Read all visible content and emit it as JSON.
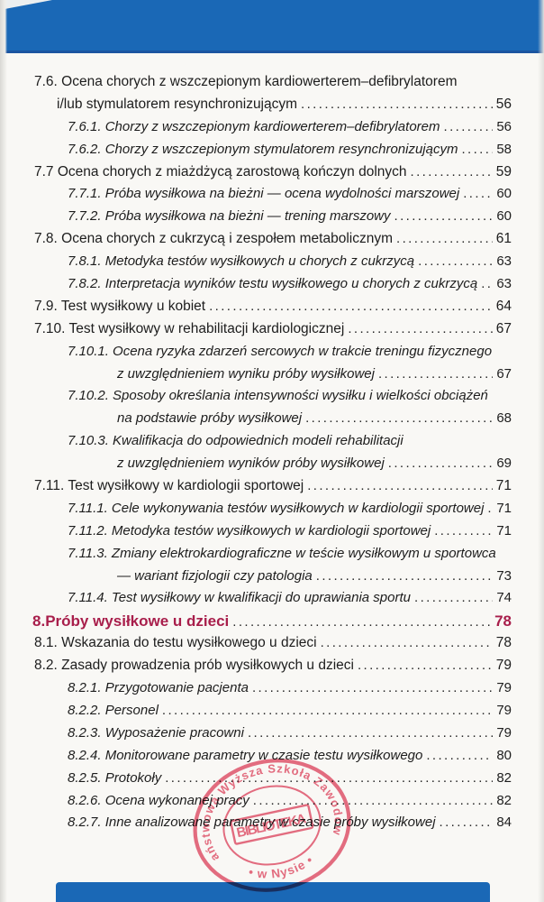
{
  "colors": {
    "blue_band": "#1a68b6",
    "blue_band_edge": "#1c55a0",
    "page_bg": "#f9f8f5",
    "text": "#1d1d1d",
    "heading_red": "#a81e4b",
    "stamp_pink": "#e4556e"
  },
  "toc": [
    {
      "lvl": "l1",
      "text": "7.6. Ocena chorych z wszczepionym kardiowerterem–defibrylatorem",
      "page": null
    },
    {
      "lvl": "l1c",
      "text": "i/lub stymulatorem resynchronizującym",
      "page": "56"
    },
    {
      "lvl": "l2",
      "text": "7.6.1. Chorzy z wszczepionym kardiowerterem–defibrylatorem",
      "page": "56"
    },
    {
      "lvl": "l2",
      "text": "7.6.2. Chorzy z wszczepionym stymulatorem resynchronizującym",
      "page": "58"
    },
    {
      "lvl": "l1",
      "text": "7.7 Ocena chorych z miażdżycą zarostową kończyn dolnych",
      "page": "59"
    },
    {
      "lvl": "l2",
      "text": "7.7.1. Próba wysiłkowa na bieżni — ocena wydolności marszowej",
      "page": "60"
    },
    {
      "lvl": "l2",
      "text": "7.7.2. Próba wysiłkowa na bieżni — trening marszowy",
      "page": "60"
    },
    {
      "lvl": "l1",
      "text": "7.8. Ocena chorych z cukrzycą i zespołem metabolicznym",
      "page": "61"
    },
    {
      "lvl": "l2",
      "text": "7.8.1. Metodyka testów wysiłkowych u chorych z cukrzycą",
      "page": "63"
    },
    {
      "lvl": "l2",
      "text": "7.8.2. Interpretacja wyników testu wysiłkowego u chorych z cukrzycą",
      "page": "63"
    },
    {
      "lvl": "l1",
      "text": "7.9. Test wysiłkowy u kobiet",
      "page": "64"
    },
    {
      "lvl": "l1",
      "text": "7.10. Test wysiłkowy w rehabilitacji kardiologicznej",
      "page": "67"
    },
    {
      "lvl": "l2",
      "text": "7.10.1. Ocena ryzyka zdarzeń sercowych w trakcie treningu fizycznego",
      "page": null
    },
    {
      "lvl": "l2c",
      "text": "z uwzględnieniem wyniku próby wysiłkowej",
      "page": "67"
    },
    {
      "lvl": "l2",
      "text": "7.10.2. Sposoby określania intensywności wysiłku i wielkości obciążeń",
      "page": null
    },
    {
      "lvl": "l2c",
      "text": "na podstawie próby wysiłkowej",
      "page": "68"
    },
    {
      "lvl": "l2",
      "text": "7.10.3. Kwalifikacja do odpowiednich modeli rehabilitacji",
      "page": null
    },
    {
      "lvl": "l2c",
      "text": "z uwzględnieniem wyników próby wysiłkowej",
      "page": "69"
    },
    {
      "lvl": "l1",
      "text": "7.11. Test wysiłkowy w kardiologii sportowej",
      "page": "71"
    },
    {
      "lvl": "l2",
      "text": "7.11.1. Cele wykonywania testów wysiłkowych w kardiologii sportowej",
      "page": "71"
    },
    {
      "lvl": "l2",
      "text": "7.11.2. Metodyka testów wysiłkowych w kardiologii sportowej",
      "page": "71"
    },
    {
      "lvl": "l2",
      "text": "7.11.3. Zmiany elektrokardiograficzne w teście wysiłkowym u sportowca",
      "page": null
    },
    {
      "lvl": "l2c",
      "text": "— wariant fizjologii czy patologia",
      "page": "73"
    },
    {
      "lvl": "l2",
      "text": "7.11.4. Test wysiłkowy w kwalifikacji do uprawiania sportu",
      "page": "74"
    },
    {
      "lvl": "h1",
      "num": "8.",
      "text": "Próby wysiłkowe u dzieci",
      "page": "78"
    },
    {
      "lvl": "l1",
      "text": "8.1. Wskazania do testu wysiłkowego u dzieci",
      "page": "78"
    },
    {
      "lvl": "l1",
      "text": "8.2. Zasady prowadzenia prób wysiłkowych u dzieci",
      "page": "79"
    },
    {
      "lvl": "l2",
      "text": "8.2.1. Przygotowanie pacjenta",
      "page": "79"
    },
    {
      "lvl": "l2",
      "text": "8.2.2. Personel",
      "page": "79"
    },
    {
      "lvl": "l2",
      "text": "8.2.3. Wyposażenie pracowni",
      "page": "79"
    },
    {
      "lvl": "l2",
      "text": "8.2.4. Monitorowane parametry w czasie testu wysiłkowego",
      "page": "80"
    },
    {
      "lvl": "l2",
      "text": "8.2.5. Protokoły",
      "page": "82"
    },
    {
      "lvl": "l2",
      "text": "8.2.6. Ocena wykonanej pracy",
      "page": "82"
    },
    {
      "lvl": "l2",
      "text": "8.2.7. Inne analizowane parametry w czasie próby wysiłkowej",
      "page": "84"
    }
  ],
  "stamp": {
    "ring_text": "Państwowa Wyższa Szkoła Zawodowa",
    "bottom_text": "• w Nysie •",
    "center_text": "BIBLIOTEKA"
  }
}
